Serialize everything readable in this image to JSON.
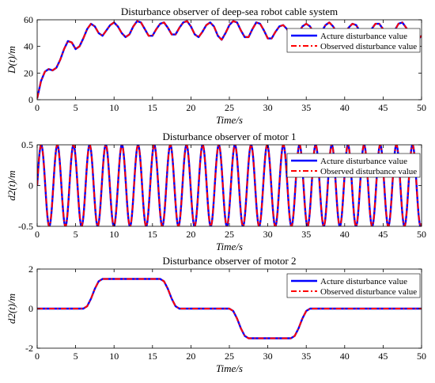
{
  "chart_data": [
    {
      "type": "line",
      "title": "Disturbance observer of deep-sea robot cable system",
      "xlabel": "Time/s",
      "ylabel": "D(t)/m",
      "xlim": [
        0,
        50
      ],
      "ylim": [
        0,
        60
      ],
      "xticks": [
        "0",
        "5",
        "10",
        "15",
        "20",
        "25",
        "30",
        "35",
        "40",
        "45",
        "50"
      ],
      "yticks": [
        "0",
        "20",
        "40",
        "60"
      ],
      "legend_placement": "right",
      "grid": false,
      "series": [
        {
          "name": "Acture disturbance value",
          "color": "#0000ff",
          "style": "solid",
          "x": [
            0,
            0.5,
            1,
            1.5,
            2,
            2.5,
            3,
            3.5,
            4,
            4.5,
            5,
            5.5,
            6,
            6.5,
            7,
            7.5,
            8,
            8.5,
            9,
            9.5,
            10,
            10.5,
            11,
            11.5,
            12,
            12.5,
            13,
            13.5,
            14,
            14.5,
            15,
            15.5,
            16,
            16.5,
            17,
            17.5,
            18,
            18.5,
            19,
            19.5,
            20,
            20.5,
            21,
            21.5,
            22,
            22.5,
            23,
            23.5,
            24,
            24.5,
            25,
            25.5,
            26,
            26.5,
            27,
            27.5,
            28,
            28.5,
            29,
            29.5,
            30,
            30.5,
            31,
            31.5,
            32,
            32.5,
            33,
            33.5,
            34,
            34.5,
            35,
            35.5,
            36,
            36.5,
            37,
            37.5,
            38,
            38.5,
            39,
            39.5,
            40,
            40.5,
            41,
            41.5,
            42,
            42.5,
            43,
            43.5,
            44,
            44.5,
            45,
            45.5,
            46,
            46.5,
            47,
            47.5,
            48,
            48.5,
            49,
            49.5,
            50
          ],
          "values": [
            1,
            14,
            21,
            23,
            22,
            24,
            30,
            38,
            44,
            43,
            38,
            40,
            46,
            53,
            57,
            55,
            50,
            48,
            52,
            56,
            58,
            55,
            50,
            47,
            49,
            55,
            59,
            58,
            53,
            48,
            48,
            53,
            57,
            58,
            54,
            49,
            49,
            54,
            58,
            59,
            55,
            49,
            47,
            51,
            56,
            58,
            55,
            48,
            45,
            50,
            56,
            59,
            58,
            52,
            47,
            47,
            53,
            58,
            57,
            52,
            46,
            46,
            51,
            55,
            56,
            53,
            48,
            47,
            50,
            55,
            57,
            55,
            50,
            48,
            51,
            56,
            58,
            55,
            50,
            47,
            49,
            54,
            57,
            56,
            51,
            47,
            48,
            53,
            57,
            57,
            53,
            48,
            48,
            52,
            57,
            58,
            54,
            49,
            47,
            45,
            48
          ]
        },
        {
          "name": "Observed disturbance value",
          "color": "#ff0000",
          "style": "dashdot",
          "x": [
            0,
            0.5,
            1,
            1.5,
            2,
            2.5,
            3,
            3.5,
            4,
            4.5,
            5,
            5.5,
            6,
            6.5,
            7,
            7.5,
            8,
            8.5,
            9,
            9.5,
            10,
            10.5,
            11,
            11.5,
            12,
            12.5,
            13,
            13.5,
            14,
            14.5,
            15,
            15.5,
            16,
            16.5,
            17,
            17.5,
            18,
            18.5,
            19,
            19.5,
            20,
            20.5,
            21,
            21.5,
            22,
            22.5,
            23,
            23.5,
            24,
            24.5,
            25,
            25.5,
            26,
            26.5,
            27,
            27.5,
            28,
            28.5,
            29,
            29.5,
            30,
            30.5,
            31,
            31.5,
            32,
            32.5,
            33,
            33.5,
            34,
            34.5,
            35,
            35.5,
            36,
            36.5,
            37,
            37.5,
            38,
            38.5,
            39,
            39.5,
            40,
            40.5,
            41,
            41.5,
            42,
            42.5,
            43,
            43.5,
            44,
            44.5,
            45,
            45.5,
            46,
            46.5,
            47,
            47.5,
            48,
            48.5,
            49,
            49.5,
            50
          ],
          "values": [
            1,
            14,
            21,
            23,
            22,
            24,
            30,
            38,
            44,
            43,
            38,
            40,
            46,
            53,
            57,
            55,
            50,
            48,
            52,
            56,
            58,
            55,
            50,
            47,
            49,
            55,
            59,
            58,
            53,
            48,
            48,
            53,
            57,
            58,
            54,
            49,
            49,
            54,
            58,
            59,
            55,
            49,
            47,
            51,
            56,
            58,
            55,
            48,
            45,
            50,
            56,
            59,
            58,
            52,
            47,
            47,
            53,
            58,
            57,
            52,
            46,
            46,
            51,
            55,
            56,
            53,
            48,
            47,
            50,
            55,
            57,
            55,
            50,
            48,
            51,
            56,
            58,
            55,
            50,
            47,
            49,
            54,
            57,
            56,
            51,
            47,
            48,
            53,
            57,
            57,
            53,
            48,
            48,
            52,
            57,
            58,
            54,
            49,
            47,
            45,
            48
          ]
        }
      ]
    },
    {
      "type": "line",
      "title": "Disturbance observer of motor 1",
      "xlabel": "Time/s",
      "ylabel": "d2(t)/m",
      "xlim": [
        0,
        50
      ],
      "ylim": [
        -0.5,
        0.5
      ],
      "xticks": [
        "0",
        "5",
        "10",
        "15",
        "20",
        "25",
        "30",
        "35",
        "40",
        "45",
        "50"
      ],
      "yticks": [
        "-0.5",
        "0",
        "0.5"
      ],
      "legend_placement": "right",
      "grid": false,
      "signal": {
        "form": "sine",
        "amplitude": 0.5,
        "period": 2.1,
        "x_start": 0,
        "x_end": 50
      },
      "series": [
        {
          "name": "Acture disturbance value",
          "color": "#0000ff",
          "style": "solid"
        },
        {
          "name": "Observed disturbance value",
          "color": "#ff0000",
          "style": "dashdot"
        }
      ]
    },
    {
      "type": "line",
      "title": "Disturbance observer of motor 2",
      "xlabel": "Time/s",
      "ylabel": "d2(t)/m",
      "xlim": [
        0,
        50
      ],
      "ylim": [
        -2,
        2
      ],
      "xticks": [
        "0",
        "5",
        "10",
        "15",
        "20",
        "25",
        "30",
        "35",
        "40",
        "45",
        "50"
      ],
      "yticks": [
        "-2",
        "0",
        "2"
      ],
      "legend_placement": "top-right",
      "grid": false,
      "series": [
        {
          "name": "Acture disturbance value",
          "color": "#0000ff",
          "style": "solid",
          "x": [
            0,
            6,
            6.5,
            7,
            7.5,
            8,
            8.5,
            16,
            16.5,
            17,
            17.5,
            18,
            18.5,
            25,
            25.5,
            26,
            26.5,
            27,
            27.5,
            33,
            33.5,
            34,
            34.5,
            35,
            35.5,
            50
          ],
          "values": [
            0,
            0,
            0.12,
            0.5,
            1.0,
            1.38,
            1.5,
            1.5,
            1.38,
            1.0,
            0.5,
            0.12,
            0,
            0,
            -0.12,
            -0.5,
            -1.0,
            -1.38,
            -1.5,
            -1.5,
            -1.38,
            -1.0,
            -0.5,
            -0.12,
            0,
            0
          ]
        },
        {
          "name": "Observed disturbance value",
          "color": "#ff0000",
          "style": "dashdot",
          "x": [
            0,
            6,
            6.5,
            7,
            7.5,
            8,
            8.5,
            16,
            16.5,
            17,
            17.5,
            18,
            18.5,
            25,
            25.5,
            26,
            26.5,
            27,
            27.5,
            33,
            33.5,
            34,
            34.5,
            35,
            35.5,
            50
          ],
          "values": [
            0,
            0,
            0.12,
            0.5,
            1.0,
            1.38,
            1.5,
            1.5,
            1.38,
            1.0,
            0.5,
            0.12,
            0,
            0,
            -0.12,
            -0.5,
            -1.0,
            -1.38,
            -1.5,
            -1.5,
            -1.38,
            -1.0,
            -0.5,
            -0.12,
            0,
            0
          ]
        }
      ]
    }
  ]
}
